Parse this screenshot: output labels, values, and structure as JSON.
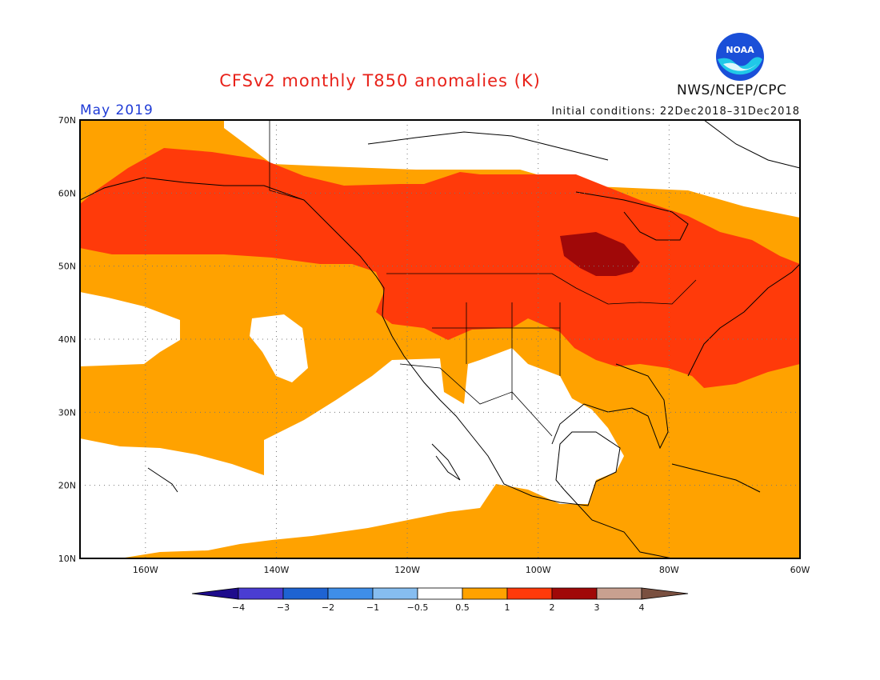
{
  "header": {
    "title": "CFSv2 monthly T850 anomalies (K)",
    "month": "May 2019",
    "agency": "NWS/NCEP/CPC",
    "initial_conditions": "Initial conditions: 22Dec2018–31Dec2018",
    "logo_text": "NOAA"
  },
  "map": {
    "lon_range": [
      -170,
      -60
    ],
    "lat_range": [
      10,
      70
    ],
    "lon_ticks": [
      "160W",
      "140W",
      "120W",
      "100W",
      "80W",
      "60W"
    ],
    "lat_ticks": [
      "70N",
      "60N",
      "50N",
      "40N",
      "30N",
      "20N",
      "10N"
    ],
    "grid": true
  },
  "colorbar": {
    "labels": [
      "-4",
      "-3",
      "-2",
      "-1",
      "-0.5",
      "0.5",
      "1",
      "2",
      "3",
      "4"
    ],
    "colors": [
      "#1e0c8c",
      "#4a3dd2",
      "#1e63d2",
      "#3f8ee8",
      "#86bdf0",
      "#ffffff",
      "#ffa200",
      "#ff3a0a",
      "#a00808",
      "#c8a090",
      "#7a5040"
    ]
  },
  "legend_colors": {
    "white": "#ffffff",
    "orange": "#ffa200",
    "red": "#ff3a0a",
    "darkred": "#a00808"
  }
}
